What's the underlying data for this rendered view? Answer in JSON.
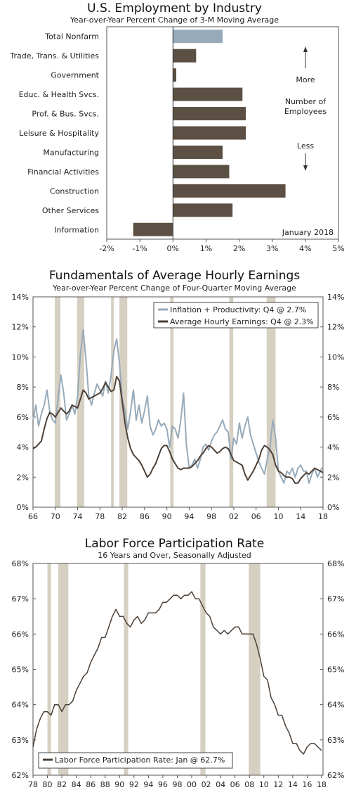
{
  "chart_data": [
    {
      "type": "bar",
      "orientation": "horizontal",
      "title": "U.S. Employment by Industry",
      "subtitle": "Year-over-Year Percent Change of 3-M Moving Average",
      "categories": [
        "Total Nonfarm",
        "Trade, Trans. & Utilities",
        "Government",
        "Educ. & Health Svcs.",
        "Prof. & Bus. Svcs.",
        "Leisure & Hospitality",
        "Manufacturing",
        "Financial Activities",
        "Construction",
        "Other Services",
        "Information"
      ],
      "values": [
        1.5,
        0.7,
        0.1,
        2.1,
        2.2,
        2.2,
        1.5,
        1.7,
        3.4,
        1.8,
        -1.2
      ],
      "highlight_index": 0,
      "colors": {
        "total": "#97aab9",
        "bars": "#5c5045"
      },
      "xlim": [
        -2,
        5
      ],
      "xticks": [
        -2,
        -1,
        0,
        1,
        2,
        3,
        4,
        5
      ],
      "tick_labels": [
        "-2%",
        "-1%",
        "0%",
        "1%",
        "2%",
        "3%",
        "4%",
        "5%"
      ],
      "annotation_top": "More",
      "annotation_mid": [
        "Number of",
        "Employees"
      ],
      "annotation_bottom": "Less",
      "note": "January 2018"
    },
    {
      "type": "line",
      "title": "Fundamentals of Average Hourly Earnings",
      "subtitle": "Year-over-Year Percent Change of Four-Quarter Moving Average",
      "x_range": [
        1966,
        2018
      ],
      "ylim": [
        0,
        14
      ],
      "yticks": [
        0,
        2,
        4,
        6,
        8,
        10,
        12,
        14
      ],
      "y_tick_labels": [
        "0%",
        "2%",
        "4%",
        "6%",
        "8%",
        "10%",
        "12%",
        "14%"
      ],
      "x_ticks": [
        1966,
        1970,
        1974,
        1978,
        1982,
        1986,
        1990,
        1994,
        1998,
        2002,
        2006,
        2010,
        2014,
        2018
      ],
      "x_tick_labels": [
        "66",
        "70",
        "74",
        "78",
        "82",
        "86",
        "90",
        "94",
        "98",
        "02",
        "06",
        "10",
        "14",
        "18"
      ],
      "recessions": [
        [
          1969.9,
          1970.9
        ],
        [
          1973.9,
          1975.2
        ],
        [
          1980.0,
          1980.5
        ],
        [
          1981.5,
          1982.9
        ],
        [
          1990.6,
          1991.2
        ],
        [
          2001.2,
          2001.9
        ],
        [
          2007.9,
          2009.5
        ]
      ],
      "legend_position": "top-right",
      "series": [
        {
          "name": "Inflation + Productivity: Q4 @ 2.7%",
          "color": "#97aab9",
          "x": [
            1966,
            1966.5,
            1967,
            1967.5,
            1968,
            1968.5,
            1969,
            1969.5,
            1970,
            1970.5,
            1971,
            1971.5,
            1972,
            1972.5,
            1973,
            1973.5,
            1974,
            1974.5,
            1975,
            1975.5,
            1976,
            1976.5,
            1977,
            1977.5,
            1978,
            1978.5,
            1979,
            1979.5,
            1980,
            1980.5,
            1981,
            1981.5,
            1982,
            1982.5,
            1983,
            1983.5,
            1984,
            1984.5,
            1985,
            1985.5,
            1986,
            1986.5,
            1987,
            1987.5,
            1988,
            1988.5,
            1989,
            1989.5,
            1990,
            1990.5,
            1991,
            1991.5,
            1992,
            1992.5,
            1993,
            1993.5,
            1994,
            1994.5,
            1995,
            1995.5,
            1996,
            1996.5,
            1997,
            1997.5,
            1998,
            1998.5,
            1999,
            1999.5,
            2000,
            2000.5,
            2001,
            2001.5,
            2002,
            2002.5,
            2003,
            2003.5,
            2004,
            2004.5,
            2005,
            2005.5,
            2006,
            2006.5,
            2007,
            2007.5,
            2008,
            2008.5,
            2009,
            2009.5,
            2010,
            2010.5,
            2011,
            2011.5,
            2012,
            2012.5,
            2013,
            2013.5,
            2014,
            2014.5,
            2015,
            2015.5,
            2016,
            2016.5,
            2017,
            2017.5,
            2018
          ],
          "y": [
            5.8,
            6.8,
            5.4,
            6.2,
            6.8,
            7.8,
            6.4,
            5.8,
            5.6,
            7.2,
            8.8,
            7.6,
            5.8,
            6.2,
            6.8,
            6.2,
            7.4,
            10.2,
            11.8,
            9.8,
            7.4,
            6.8,
            7.6,
            8.2,
            7.8,
            7.4,
            8.4,
            7.6,
            8.8,
            10.4,
            11.2,
            9.6,
            7.2,
            6.4,
            5.2,
            6.4,
            7.8,
            5.8,
            6.8,
            5.6,
            6.4,
            7.4,
            5.4,
            4.8,
            5.2,
            5.8,
            5.4,
            5.6,
            5.2,
            4.0,
            5.4,
            5.2,
            4.6,
            5.8,
            7.6,
            4.2,
            2.6,
            2.8,
            3.2,
            2.6,
            3.2,
            4.0,
            4.2,
            3.8,
            4.4,
            4.8,
            5.0,
            5.4,
            5.8,
            5.2,
            5.0,
            3.2,
            4.6,
            4.2,
            5.6,
            4.6,
            5.4,
            6.0,
            4.8,
            4.2,
            3.6,
            3.0,
            2.6,
            2.2,
            3.2,
            4.0,
            5.8,
            4.6,
            2.4,
            2.0,
            1.6,
            2.4,
            2.2,
            2.6,
            2.0,
            2.6,
            2.8,
            2.4,
            2.4,
            1.6,
            2.2,
            2.6,
            2.0,
            2.4,
            2.7
          ]
        },
        {
          "name": "Average Hourly Earnings: Q4 @ 2.3%",
          "color": "#4e4036",
          "x": [
            1966,
            1966.5,
            1967,
            1967.5,
            1968,
            1968.5,
            1969,
            1969.5,
            1970,
            1970.5,
            1971,
            1971.5,
            1972,
            1972.5,
            1973,
            1973.5,
            1974,
            1974.5,
            1975,
            1975.5,
            1976,
            1976.5,
            1977,
            1977.5,
            1978,
            1978.5,
            1979,
            1979.5,
            1980,
            1980.5,
            1981,
            1981.5,
            1982,
            1982.5,
            1983,
            1983.5,
            1984,
            1984.5,
            1985,
            1985.5,
            1986,
            1986.5,
            1987,
            1987.5,
            1988,
            1988.5,
            1989,
            1989.5,
            1990,
            1990.5,
            1991,
            1991.5,
            1992,
            1992.5,
            1993,
            1993.5,
            1994,
            1994.5,
            1995,
            1995.5,
            1996,
            1996.5,
            1997,
            1997.5,
            1998,
            1998.5,
            1999,
            1999.5,
            2000,
            2000.5,
            2001,
            2001.5,
            2002,
            2002.5,
            2003,
            2003.5,
            2004,
            2004.5,
            2005,
            2005.5,
            2006,
            2006.5,
            2007,
            2007.5,
            2008,
            2008.5,
            2009,
            2009.5,
            2010,
            2010.5,
            2011,
            2011.5,
            2012,
            2012.5,
            2013,
            2013.5,
            2014,
            2014.5,
            2015,
            2015.5,
            2016,
            2016.5,
            2017,
            2017.5,
            2018
          ],
          "y": [
            3.9,
            4.0,
            4.2,
            4.4,
            5.2,
            5.9,
            6.3,
            6.2,
            6.0,
            6.3,
            6.6,
            6.4,
            6.2,
            6.4,
            6.8,
            6.7,
            6.6,
            7.2,
            7.8,
            7.6,
            7.2,
            7.3,
            7.4,
            7.5,
            7.6,
            7.9,
            8.3,
            8.0,
            7.7,
            7.8,
            8.7,
            8.4,
            7.0,
            5.6,
            4.6,
            3.9,
            3.5,
            3.3,
            3.1,
            2.8,
            2.4,
            2.0,
            2.2,
            2.6,
            2.9,
            3.4,
            3.9,
            4.1,
            4.1,
            3.7,
            3.2,
            2.9,
            2.6,
            2.5,
            2.6,
            2.6,
            2.6,
            2.7,
            2.9,
            3.1,
            3.4,
            3.6,
            3.9,
            4.1,
            4.0,
            3.8,
            3.6,
            3.7,
            3.9,
            4.0,
            3.9,
            3.5,
            3.1,
            3.0,
            2.9,
            2.8,
            2.2,
            1.8,
            2.1,
            2.4,
            2.8,
            3.2,
            3.8,
            4.1,
            4.0,
            3.8,
            3.5,
            2.8,
            2.4,
            2.3,
            2.1,
            2.0,
            2.0,
            1.9,
            1.6,
            1.6,
            1.9,
            2.1,
            2.3,
            2.2,
            2.4,
            2.6,
            2.5,
            2.4,
            2.3
          ]
        }
      ]
    },
    {
      "type": "line",
      "title": "Labor Force Participation Rate",
      "subtitle": "16 Years and Over, Seasonally Adjusted",
      "x_range": [
        1978,
        2018.2
      ],
      "ylim": [
        62,
        68
      ],
      "yticks": [
        62,
        63,
        64,
        65,
        66,
        67,
        68
      ],
      "y_tick_labels": [
        "62%",
        "63%",
        "64%",
        "65%",
        "66%",
        "67%",
        "68%"
      ],
      "x_ticks": [
        1978,
        1980,
        1982,
        1984,
        1986,
        1988,
        1990,
        1992,
        1994,
        1996,
        1998,
        2000,
        2002,
        2004,
        2006,
        2008,
        2010,
        2012,
        2014,
        2016,
        2018
      ],
      "x_tick_labels": [
        "78",
        "80",
        "82",
        "84",
        "86",
        "88",
        "90",
        "92",
        "94",
        "96",
        "98",
        "00",
        "02",
        "04",
        "06",
        "08",
        "10",
        "12",
        "14",
        "16",
        "18"
      ],
      "recessions": [
        [
          1980.0,
          1980.5
        ],
        [
          1981.5,
          1982.9
        ],
        [
          1990.6,
          1991.2
        ],
        [
          2001.2,
          2001.9
        ],
        [
          2007.9,
          2009.5
        ]
      ],
      "legend_position": "bottom-left",
      "series": [
        {
          "name": "Labor Force Participation Rate: Jan @ 62.7%",
          "color": "#4e4036",
          "x": [
            1978,
            1978.5,
            1979,
            1979.5,
            1980,
            1980.5,
            1981,
            1981.5,
            1982,
            1982.5,
            1983,
            1983.5,
            1984,
            1984.5,
            1985,
            1985.5,
            1986,
            1986.5,
            1987,
            1987.5,
            1988,
            1988.5,
            1989,
            1989.5,
            1990,
            1990.5,
            1991,
            1991.5,
            1992,
            1992.5,
            1993,
            1993.5,
            1994,
            1994.5,
            1995,
            1995.5,
            1996,
            1996.5,
            1997,
            1997.5,
            1998,
            1998.5,
            1999,
            1999.5,
            2000,
            2000.5,
            2001,
            2001.5,
            2002,
            2002.5,
            2003,
            2003.5,
            2004,
            2004.5,
            2005,
            2005.5,
            2006,
            2006.5,
            2007,
            2007.5,
            2008,
            2008.5,
            2009,
            2009.5,
            2010,
            2010.5,
            2011,
            2011.5,
            2012,
            2012.5,
            2013,
            2013.5,
            2014,
            2014.5,
            2015,
            2015.5,
            2016,
            2016.5,
            2017,
            2017.5,
            2018
          ],
          "y": [
            62.8,
            63.3,
            63.6,
            63.8,
            63.8,
            63.7,
            64.0,
            64.0,
            63.8,
            64.0,
            64.0,
            64.1,
            64.4,
            64.6,
            64.8,
            64.9,
            65.2,
            65.4,
            65.6,
            65.9,
            65.9,
            66.2,
            66.5,
            66.7,
            66.5,
            66.5,
            66.3,
            66.2,
            66.4,
            66.5,
            66.3,
            66.4,
            66.6,
            66.6,
            66.6,
            66.7,
            66.9,
            66.9,
            67.0,
            67.1,
            67.1,
            67.0,
            67.1,
            67.1,
            67.2,
            67.0,
            67.0,
            66.8,
            66.6,
            66.5,
            66.2,
            66.1,
            66.0,
            66.1,
            66.0,
            66.1,
            66.2,
            66.2,
            66.0,
            66.0,
            66.0,
            66.0,
            65.7,
            65.3,
            64.8,
            64.7,
            64.2,
            64.0,
            63.7,
            63.7,
            63.4,
            63.2,
            62.9,
            62.9,
            62.7,
            62.6,
            62.8,
            62.9,
            62.9,
            62.8,
            62.7
          ]
        }
      ]
    }
  ]
}
